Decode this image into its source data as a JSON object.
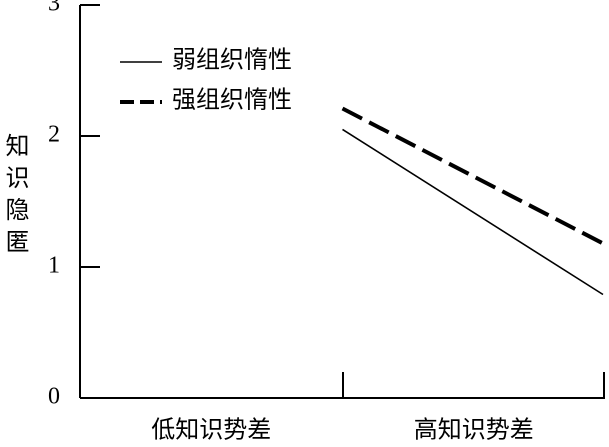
{
  "chart_data": {
    "type": "line",
    "y_label": "知识隐匿",
    "categories": [
      "低知识势差",
      "高知识势差"
    ],
    "series": [
      {
        "name": "弱组织惰性",
        "color": "#000000",
        "dashed": false,
        "values": [
          2.05,
          0.79
        ]
      },
      {
        "name": "强组织惰性",
        "color": "#000000",
        "dashed": true,
        "values": [
          2.21,
          1.18
        ]
      }
    ],
    "ylim": [
      0,
      3
    ],
    "yticks": [
      0,
      1,
      2,
      3
    ],
    "legend": "upper-left"
  }
}
